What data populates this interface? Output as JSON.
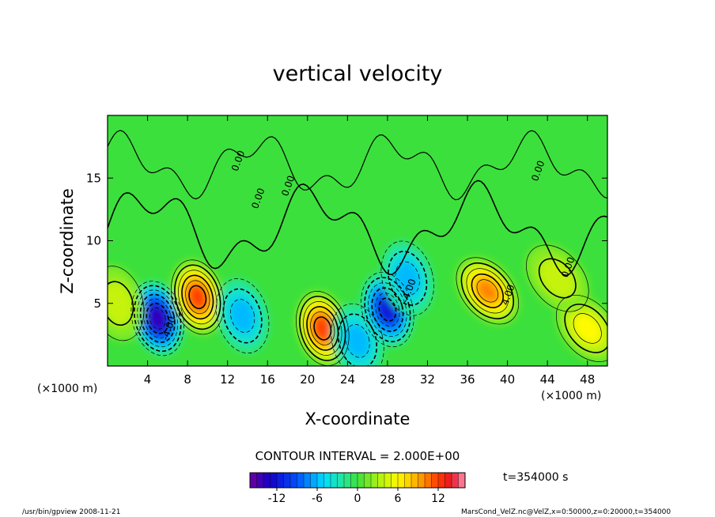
{
  "chart_data": {
    "type": "heatmap",
    "title": "vertical velocity",
    "xlabel": "X-coordinate",
    "ylabel": "Z-coordinate",
    "x_unit": "(×1000 m)",
    "xlim": [
      0,
      50
    ],
    "ylim": [
      0,
      20
    ],
    "x_ticks": [
      4,
      8,
      12,
      16,
      20,
      24,
      28,
      32,
      36,
      40,
      44,
      48
    ],
    "y_ticks": [
      5,
      10,
      15
    ],
    "contour_interval": "CONTOUR INTERVAL = 2.000E+00",
    "contour_labels": [
      "0.00",
      "0.00",
      "0.00",
      "0.00",
      "-4.00",
      "4.00",
      "-4.00",
      "0.00"
    ],
    "colorbar": {
      "range": [
        -16,
        16
      ],
      "ticks": [
        -12,
        -6,
        0,
        6,
        12
      ]
    },
    "time": "t=354000 s",
    "features": [
      {
        "x": 5,
        "z": 3.8,
        "w": -14
      },
      {
        "x": 9,
        "z": 5.5,
        "w": 12
      },
      {
        "x": 13.5,
        "z": 4,
        "w": -6
      },
      {
        "x": 21.5,
        "z": 3,
        "w": 12
      },
      {
        "x": 25,
        "z": 2,
        "w": -6
      },
      {
        "x": 28,
        "z": 4.5,
        "w": -12
      },
      {
        "x": 30,
        "z": 7,
        "w": -6
      },
      {
        "x": 38,
        "z": 6,
        "w": 10
      },
      {
        "x": 48,
        "z": 3,
        "w": 6
      },
      {
        "x": 45,
        "z": 7,
        "w": 4
      },
      {
        "x": 1,
        "z": 5,
        "w": 4
      }
    ]
  },
  "footer": {
    "left": "/usr/bin/gpview   2008-11-21",
    "right": "MarsCond_VelZ.nc@VelZ,x=0:50000,z=0:20000,t=354000"
  }
}
